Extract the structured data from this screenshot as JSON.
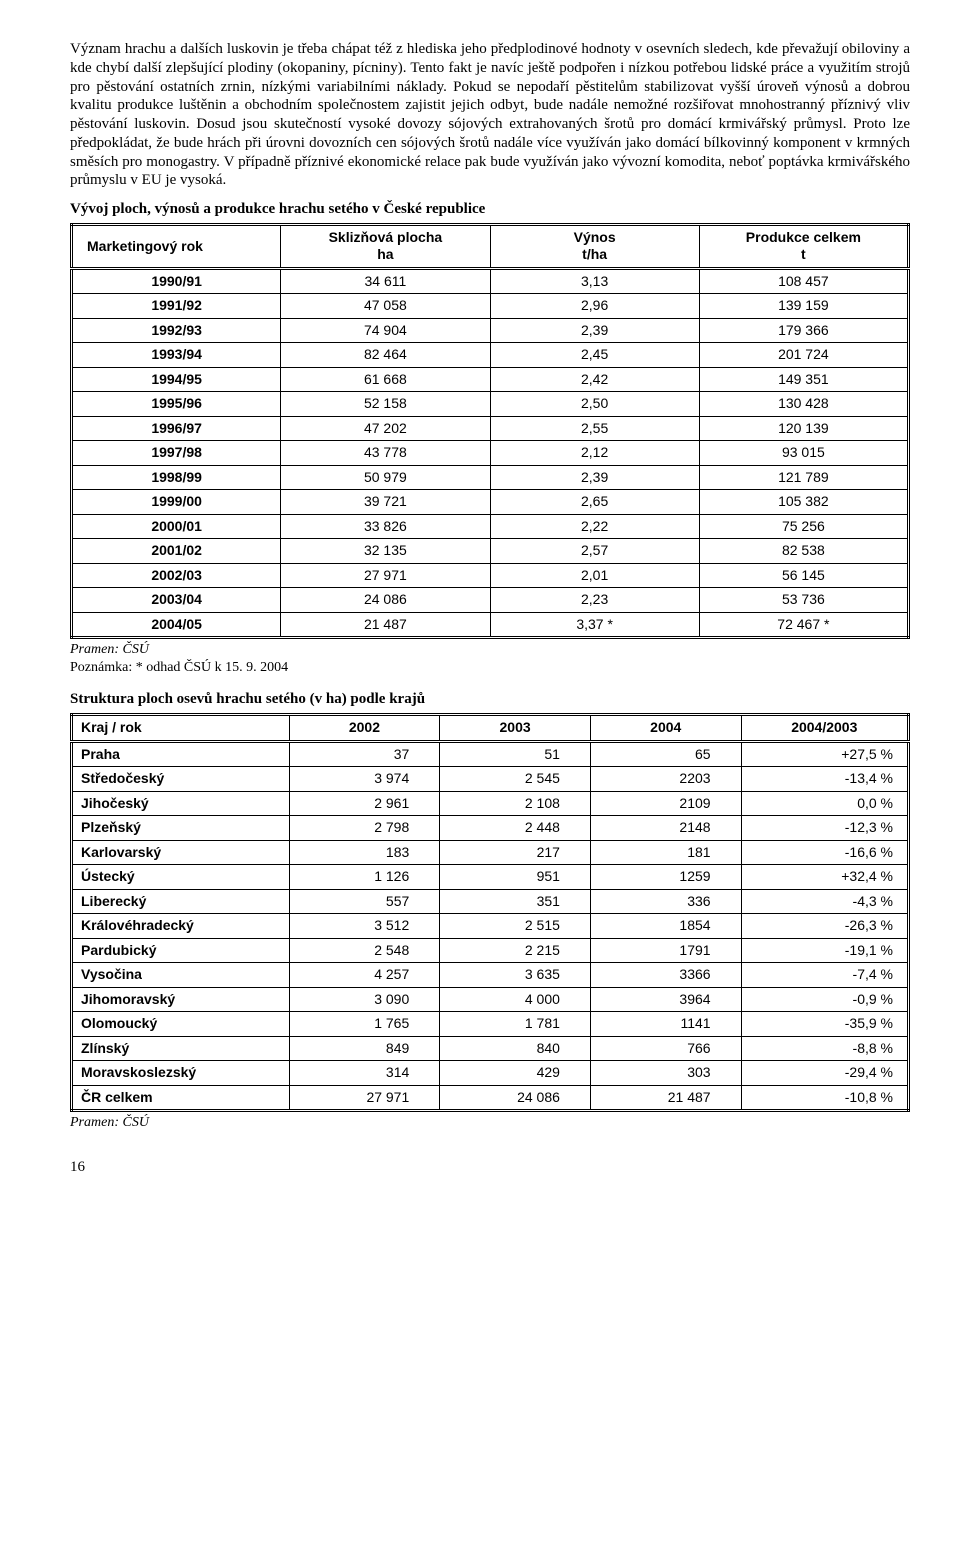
{
  "paragraph": "Význam hrachu a dalších luskovin je třeba chápat též z hlediska jeho předplodinové hodnoty v osevních sledech, kde převažují obiloviny a kde chybí další zlepšující plodiny (okopaniny, pícniny). Tento fakt je navíc ještě podpořen i nízkou potřebou lidské práce a využitím strojů pro pěstování ostatních zrnin, nízkými variabilními náklady. Pokud se nepodaří pěstitelům stabilizovat vyšší úroveň výnosů a dobrou kvalitu produkce luštěnin a obchodním společnostem zajistit jejich odbyt, bude nadále nemožné rozšiřovat mnohostranný příznivý vliv pěstování luskovin. Dosud jsou skutečností vysoké dovozy sójových extrahovaných šrotů pro domácí krmivářský průmysl. Proto lze předpokládat, že bude hrách při úrovni dovozních cen sójových šrotů nadále více využíván jako domácí bílkovinný komponent v krmných směsích pro monogastry. V případně příznivé ekonomické relace pak bude využíván jako vývozní komodita, neboť poptávka krmivářského průmyslu v EU je vysoká.",
  "table1": {
    "title": "Vývoj ploch, výnosů a produkce hrachu setého v České republice",
    "headers": {
      "c1": "Marketingový rok",
      "c2a": "Sklizňová plocha",
      "c2b": "ha",
      "c3a": "Výnos",
      "c3b": "t/ha",
      "c4a": "Produkce celkem",
      "c4b": "t"
    },
    "rows": [
      {
        "year": "1990/91",
        "area": "34  611",
        "yield": "3,13",
        "prod": "108 457"
      },
      {
        "year": "1991/92",
        "area": "47 058",
        "yield": "2,96",
        "prod": "139 159"
      },
      {
        "year": "1992/93",
        "area": "74 904",
        "yield": "2,39",
        "prod": "179 366"
      },
      {
        "year": "1993/94",
        "area": "82 464",
        "yield": "2,45",
        "prod": "201 724"
      },
      {
        "year": "1994/95",
        "area": "61 668",
        "yield": "2,42",
        "prod": "149 351"
      },
      {
        "year": "1995/96",
        "area": "52 158",
        "yield": "2,50",
        "prod": "130 428"
      },
      {
        "year": "1996/97",
        "area": "47 202",
        "yield": "2,55",
        "prod": "120 139"
      },
      {
        "year": "1997/98",
        "area": "43 778",
        "yield": "2,12",
        "prod": "93 015"
      },
      {
        "year": "1998/99",
        "area": "50 979",
        "yield": "2,39",
        "prod": "121 789"
      },
      {
        "year": "1999/00",
        "area": "39 721",
        "yield": "2,65",
        "prod": "105 382"
      },
      {
        "year": "2000/01",
        "area": "33 826",
        "yield": "2,22",
        "prod": "75 256"
      },
      {
        "year": "2001/02",
        "area": "32 135",
        "yield": "2,57",
        "prod": "82 538"
      },
      {
        "year": "2002/03",
        "area": "27 971",
        "yield": "2,01",
        "prod": "56 145"
      },
      {
        "year": "2003/04",
        "area": "24 086",
        "yield": "2,23",
        "prod": "53 736"
      },
      {
        "year": "2004/05",
        "area": "21 487",
        "yield": "3,37 *",
        "prod": "72 467 *"
      }
    ],
    "source": "Pramen: ČSÚ",
    "note": "Poznámka: * odhad ČSÚ k 15. 9. 2004"
  },
  "table2": {
    "title": "Struktura ploch osevů hrachu setého (v ha) podle krajů",
    "headers": {
      "c1": "Kraj / rok",
      "c2": "2002",
      "c3": "2003",
      "c4": "2004",
      "c5": "2004/2003"
    },
    "rows": [
      {
        "k": "Praha",
        "a": "37",
        "b": "51",
        "c": "65",
        "d": "+27,5 %"
      },
      {
        "k": "Středočeský",
        "a": "3 974",
        "b": "2 545",
        "c": "2203",
        "d": "-13,4 %"
      },
      {
        "k": "Jihočeský",
        "a": "2 961",
        "b": "2 108",
        "c": "2109",
        "d": "0,0 %"
      },
      {
        "k": "Plzeňský",
        "a": "2 798",
        "b": "2 448",
        "c": "2148",
        "d": "-12,3 %"
      },
      {
        "k": "Karlovarský",
        "a": "183",
        "b": "217",
        "c": "181",
        "d": "-16,6 %"
      },
      {
        "k": "Ústecký",
        "a": "1 126",
        "b": "951",
        "c": "1259",
        "d": "+32,4 %"
      },
      {
        "k": "Liberecký",
        "a": "557",
        "b": "351",
        "c": "336",
        "d": "-4,3 %"
      },
      {
        "k": "Královéhradecký",
        "a": "3 512",
        "b": "2 515",
        "c": "1854",
        "d": "-26,3 %"
      },
      {
        "k": "Pardubický",
        "a": "2 548",
        "b": "2 215",
        "c": "1791",
        "d": "-19,1 %"
      },
      {
        "k": "Vysočina",
        "a": "4 257",
        "b": "3 635",
        "c": "3366",
        "d": "-7,4 %"
      },
      {
        "k": "Jihomoravský",
        "a": "3 090",
        "b": "4 000",
        "c": "3964",
        "d": "-0,9 %"
      },
      {
        "k": "Olomoucký",
        "a": "1 765",
        "b": "1 781",
        "c": "1141",
        "d": "-35,9 %"
      },
      {
        "k": "Zlínský",
        "a": "849",
        "b": "840",
        "c": "766",
        "d": "-8,8 %"
      },
      {
        "k": "Moravskoslezský",
        "a": "314",
        "b": "429",
        "c": "303",
        "d": "-29,4 %"
      },
      {
        "k": "ČR celkem",
        "a": "27 971",
        "b": "24 086",
        "c": "21 487",
        "d": "-10,8 %"
      }
    ],
    "source": "Pramen: ČSÚ"
  },
  "page_number": "16"
}
